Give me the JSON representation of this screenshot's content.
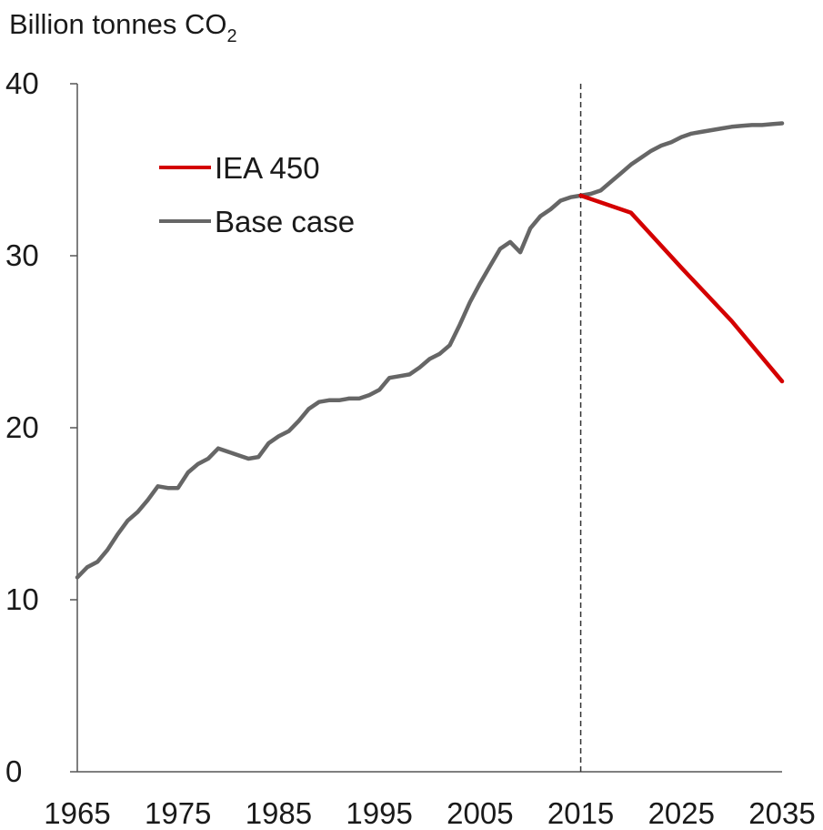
{
  "chart_data": {
    "type": "line",
    "ylabel": "Billion tonnes CO",
    "ylabel_subscript": "2",
    "xlim": [
      1965,
      2035
    ],
    "ylim": [
      0,
      40
    ],
    "yticks": [
      0,
      10,
      20,
      30,
      40
    ],
    "xticks": [
      1965,
      1975,
      1985,
      1995,
      2005,
      2015,
      2025,
      2035
    ],
    "projection_start": 2015,
    "grid": false,
    "legend_position": "top-left",
    "series": [
      {
        "name": "IEA 450",
        "color": "#d40000",
        "x": [
          2015,
          2020,
          2025,
          2030,
          2035
        ],
        "values": [
          33.5,
          32.5,
          29.3,
          26.2,
          22.7
        ]
      },
      {
        "name": "Base case",
        "color": "#666666",
        "x": [
          1965,
          1966,
          1967,
          1968,
          1969,
          1970,
          1971,
          1972,
          1973,
          1974,
          1975,
          1976,
          1977,
          1978,
          1979,
          1980,
          1981,
          1982,
          1983,
          1984,
          1985,
          1986,
          1987,
          1988,
          1989,
          1990,
          1991,
          1992,
          1993,
          1994,
          1995,
          1996,
          1997,
          1998,
          1999,
          2000,
          2001,
          2002,
          2003,
          2004,
          2005,
          2006,
          2007,
          2008,
          2009,
          2010,
          2011,
          2012,
          2013,
          2014,
          2015,
          2016,
          2017,
          2018,
          2019,
          2020,
          2021,
          2022,
          2023,
          2024,
          2025,
          2026,
          2027,
          2028,
          2029,
          2030,
          2031,
          2032,
          2033,
          2034,
          2035
        ],
        "values": [
          11.3,
          11.9,
          12.2,
          12.9,
          13.8,
          14.6,
          15.1,
          15.8,
          16.6,
          16.5,
          16.5,
          17.4,
          17.9,
          18.2,
          18.8,
          18.6,
          18.4,
          18.2,
          18.3,
          19.1,
          19.5,
          19.8,
          20.4,
          21.1,
          21.5,
          21.6,
          21.6,
          21.7,
          21.7,
          21.9,
          22.2,
          22.9,
          23.0,
          23.1,
          23.5,
          24.0,
          24.3,
          24.8,
          26.0,
          27.3,
          28.4,
          29.4,
          30.4,
          30.8,
          30.2,
          31.6,
          32.3,
          32.7,
          33.2,
          33.4,
          33.5,
          33.6,
          33.8,
          34.3,
          34.8,
          35.3,
          35.7,
          36.1,
          36.4,
          36.6,
          36.9,
          37.1,
          37.2,
          37.3,
          37.4,
          37.5,
          37.55,
          37.6,
          37.6,
          37.65,
          37.7
        ]
      }
    ]
  }
}
